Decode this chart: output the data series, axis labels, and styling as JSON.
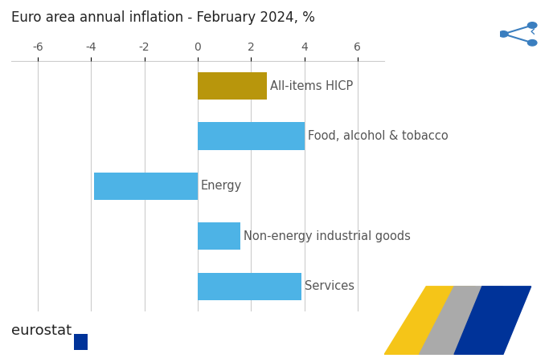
{
  "title": "Euro area annual inflation - February 2024, %",
  "categories": [
    "All-items HICP",
    "Food, alcohol & tobacco",
    "Energy",
    "Non-energy industrial goods",
    "Services"
  ],
  "values": [
    2.6,
    4.0,
    -3.9,
    1.6,
    3.9
  ],
  "colors": [
    "#b8960c",
    "#4db3e6",
    "#4db3e6",
    "#4db3e6",
    "#4db3e6"
  ],
  "xlim": [
    -7,
    7
  ],
  "xticks": [
    -6,
    -4,
    -2,
    0,
    2,
    4,
    6
  ],
  "bar_height": 0.55,
  "label_fontsize": 10.5,
  "title_fontsize": 12,
  "tick_fontsize": 10,
  "background_color": "#ffffff",
  "grid_color": "#cccccc",
  "eurostat_text": "eurostat",
  "label_color": "#555555",
  "title_color": "#222222",
  "share_icon_color": "#3a7ebf"
}
